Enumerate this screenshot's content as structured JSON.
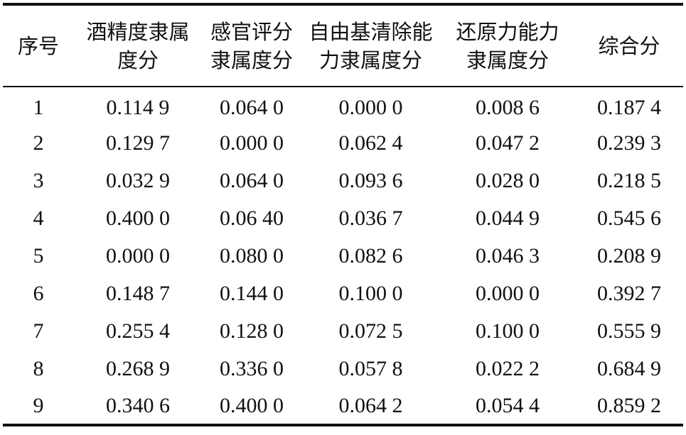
{
  "table": {
    "headers": [
      {
        "line1": "序号",
        "line2": ""
      },
      {
        "line1": "酒精度隶属",
        "line2": "度分"
      },
      {
        "line1": "感官评分",
        "line2": "隶属度分"
      },
      {
        "line1": "自由基清除能",
        "line2": "力隶属度分"
      },
      {
        "line1": "还原力能力",
        "line2": "隶属度分"
      },
      {
        "line1": "综合分",
        "line2": ""
      }
    ],
    "rows": [
      [
        "1",
        "0.114 9",
        "0.064 0",
        "0.000 0",
        "0.008 6",
        "0.187 4"
      ],
      [
        "2",
        "0.129 7",
        "0.000 0",
        "0.062 4",
        "0.047 2",
        "0.239 3"
      ],
      [
        "3",
        "0.032 9",
        "0.064 0",
        "0.093 6",
        "0.028 0",
        "0.218 5"
      ],
      [
        "4",
        "0.400 0",
        "0.06 40",
        "0.036 7",
        "0.044 9",
        "0.545 6"
      ],
      [
        "5",
        "0.000 0",
        "0.080 0",
        "0.082 6",
        "0.046 3",
        "0.208 9"
      ],
      [
        "6",
        "0.148 7",
        "0.144 0",
        "0.100 0",
        "0.000 0",
        "0.392 7"
      ],
      [
        "7",
        "0.255 4",
        "0.128 0",
        "0.072 5",
        "0.100 0",
        "0.555 9"
      ],
      [
        "8",
        "0.268 9",
        "0.336 0",
        "0.057 8",
        "0.022 2",
        "0.684 9"
      ],
      [
        "9",
        "0.340 6",
        "0.400 0",
        "0.064 2",
        "0.054 4",
        "0.859 2"
      ]
    ]
  }
}
